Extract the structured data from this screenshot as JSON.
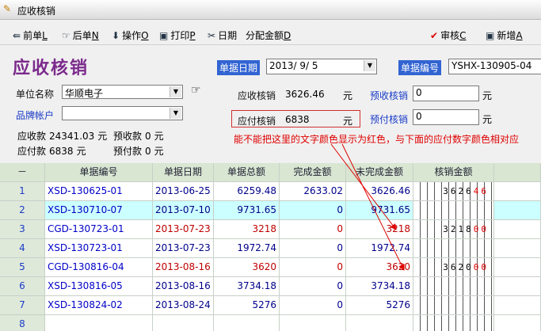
{
  "window": {
    "title": "应收核销"
  },
  "toolbar": [
    {
      "label": "前单",
      "key": "L"
    },
    {
      "label": "后单",
      "key": "N"
    },
    {
      "label": "操作",
      "key": "O"
    },
    {
      "label": "打印",
      "key": "P"
    },
    {
      "label": "日期"
    },
    {
      "label": "分配金额",
      "key": "D"
    },
    {
      "label": "审核",
      "key": "C"
    },
    {
      "label": "新增",
      "key": "A"
    }
  ],
  "form": {
    "title": "应收核销",
    "date_label": "单据日期",
    "date": "2013/  9/  5",
    "number_label": "单据编号",
    "number": "YSHX-130905-04",
    "unit_label": "单位名称",
    "unit": "华顺电子",
    "brand_label": "品牌帐户",
    "balances": [
      {
        "label": "应收款",
        "value": 24341.03,
        "unit": "元"
      },
      {
        "label": "预收款",
        "value": 0,
        "unit": "元"
      },
      {
        "label": "应付款",
        "value": 6838,
        "unit": "元"
      },
      {
        "label": "预付款",
        "value": 0,
        "unit": "元"
      }
    ],
    "receivable": {
      "label": "应收核销",
      "value": 3626.46,
      "unit": "元"
    },
    "prereceive": {
      "label": "预收核销",
      "value": 0,
      "unit": "元"
    },
    "payable": {
      "label": "应付核销",
      "value": 6838,
      "unit": "元"
    },
    "prepay": {
      "label": "预付核销",
      "value": 0,
      "unit": "元"
    }
  },
  "annotation": "能不能把这里的文字颜色显示为红色，与下面的应付数字颜色相对应",
  "table": {
    "columns": [
      "－",
      "单据编号",
      "单据日期",
      "单据总额",
      "完成金额",
      "未完成金额",
      "核销金额"
    ],
    "rows": [
      {
        "no": 1,
        "doc": "XSD-130625-01",
        "date": "2013-06-25",
        "total": 6259.48,
        "done": 2633.02,
        "undone": 3626.46,
        "verify": {
          "int": "3626",
          "dec": "46"
        },
        "color": "#00008b"
      },
      {
        "no": 2,
        "doc": "XSD-130710-07",
        "date": "2013-07-10",
        "total": 9731.65,
        "done": 0,
        "undone": 9731.65,
        "color": "#00008b",
        "selected": true
      },
      {
        "no": 3,
        "doc": "CGD-130723-01",
        "date": "2013-07-23",
        "total": 3218,
        "done": 0,
        "undone": 3218,
        "verify": {
          "int": "3218",
          "dec": "00"
        },
        "color": "#c00000"
      },
      {
        "no": 4,
        "doc": "XSD-130723-01",
        "date": "2013-07-23",
        "total": 1972.74,
        "done": 0,
        "undone": 1972.74,
        "color": "#00008b"
      },
      {
        "no": 5,
        "doc": "CGD-130816-04",
        "date": "2013-08-16",
        "total": 3620,
        "done": 0,
        "undone": 3620,
        "verify": {
          "int": "3620",
          "dec": "00"
        },
        "color": "#c00000"
      },
      {
        "no": 6,
        "doc": "XSD-130816-05",
        "date": "2013-08-16",
        "total": 3734.18,
        "done": 0,
        "undone": 3734.18,
        "color": "#00008b"
      },
      {
        "no": 7,
        "doc": "XSD-130824-02",
        "date": "2013-08-24",
        "total": 5276,
        "done": 0,
        "undone": 5276,
        "color": "#00008b"
      },
      {
        "no": 8
      }
    ]
  }
}
